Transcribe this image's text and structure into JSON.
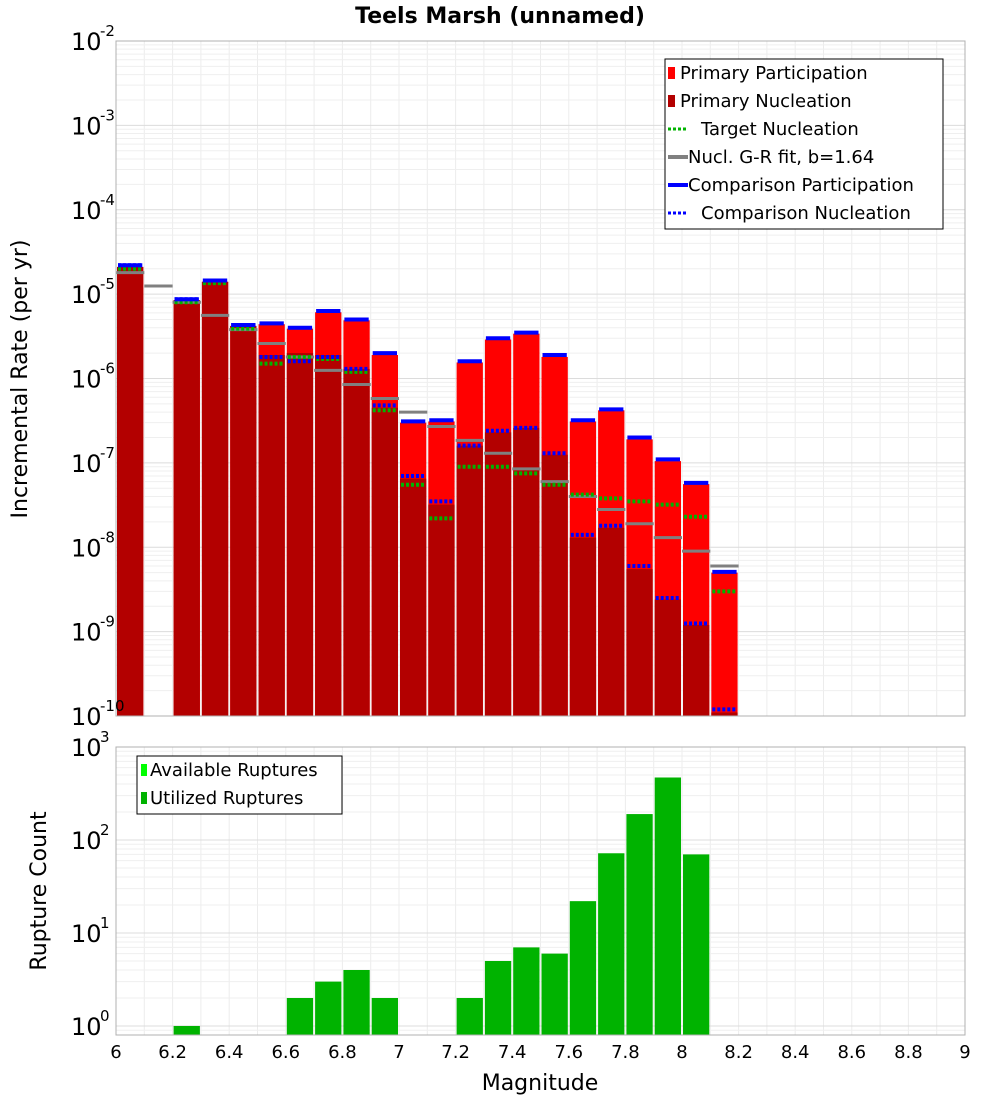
{
  "chart_data": [
    {
      "type": "bar",
      "title": "Teels Marsh (unnamed)",
      "ylabel": "Incremental Rate (per yr)",
      "xlim": [
        6,
        9
      ],
      "ylim": [
        1e-10,
        0.01
      ],
      "yscale": "log",
      "grid": true,
      "legend_position": "top-right",
      "bin_width": 0.1,
      "legend": [
        {
          "label": "Primary Participation",
          "color": "#ff0000",
          "style": "bar"
        },
        {
          "label": "Primary Nucleation",
          "color": "#b30000",
          "style": "bar"
        },
        {
          "label": "Target Nucleation",
          "color": "#00b300",
          "style": "dotted"
        },
        {
          "label": "Nucl. G-R fit, b=1.64",
          "color": "#808080",
          "style": "solid"
        },
        {
          "label": "Comparison Participation",
          "color": "#0000ff",
          "style": "solid"
        },
        {
          "label": "Comparison Nucleation",
          "color": "#0000ff",
          "style": "dotted"
        }
      ],
      "series": [
        {
          "name": "Primary Participation",
          "x": [
            6.05,
            6.25,
            6.35,
            6.45,
            6.55,
            6.65,
            6.75,
            6.85,
            6.95,
            7.05,
            7.15,
            7.25,
            7.35,
            7.45,
            7.55,
            7.65,
            7.75,
            7.85,
            7.95,
            8.05,
            8.15
          ],
          "values": [
            2.1e-05,
            8.5e-06,
            1.4e-05,
            4.2e-06,
            4.4e-06,
            3.9e-06,
            6.1e-06,
            4.9e-06,
            1.9e-06,
            3e-07,
            3.1e-07,
            1.55e-06,
            2.9e-06,
            3.4e-06,
            1.8e-06,
            3.1e-07,
            4.2e-07,
            1.9e-07,
            1.05e-07,
            5.6e-08,
            5e-09
          ]
        },
        {
          "name": "Primary Nucleation",
          "x": [
            6.05,
            6.25,
            6.35,
            6.45,
            6.55,
            6.65,
            6.75,
            6.85,
            6.95,
            7.05,
            7.15,
            7.25,
            7.35,
            7.45,
            7.55,
            7.65,
            7.75,
            7.85,
            7.95,
            8.05,
            8.15
          ],
          "values": [
            2.1e-05,
            8.5e-06,
            1.4e-05,
            4.2e-06,
            1.9e-06,
            2e-06,
            1.9e-06,
            1.3e-06,
            4.5e-07,
            6.5e-08,
            3.2e-08,
            1.6e-07,
            2.3e-07,
            2.6e-07,
            1.25e-07,
            1.3e-08,
            1.7e-08,
            5.5e-09,
            2.4e-09,
            1.2e-09,
            1.1e-10
          ]
        },
        {
          "name": "Target Nucleation",
          "x": [
            6.05,
            6.25,
            6.35,
            6.45,
            6.55,
            6.65,
            6.75,
            6.85,
            6.95,
            7.05,
            7.15,
            7.25,
            7.35,
            7.45,
            7.55,
            7.65,
            7.75,
            7.85,
            7.95,
            8.05,
            8.15
          ],
          "values": [
            2e-05,
            8e-06,
            1.35e-05,
            3.9e-06,
            1.5e-06,
            1.8e-06,
            1.7e-06,
            1.2e-06,
            4.2e-07,
            5.5e-08,
            2.2e-08,
            9e-08,
            9e-08,
            7.5e-08,
            5.5e-08,
            4.2e-08,
            3.8e-08,
            3.5e-08,
            3.2e-08,
            2.3e-08,
            3e-09
          ]
        },
        {
          "name": "Nucl. G-R fit, b=1.64",
          "x": [
            6.05,
            6.15,
            6.25,
            6.35,
            6.45,
            6.55,
            6.65,
            6.75,
            6.85,
            6.95,
            7.05,
            7.15,
            7.25,
            7.35,
            7.45,
            7.55,
            7.65,
            7.75,
            7.85,
            7.95,
            8.05,
            8.15
          ],
          "values": [
            1.8e-05,
            1.25e-05,
            8e-06,
            5.6e-06,
            3.8e-06,
            2.6e-06,
            1.8e-06,
            1.25e-06,
            8.5e-07,
            5.8e-07,
            4e-07,
            2.7e-07,
            1.85e-07,
            1.3e-07,
            8.5e-08,
            6e-08,
            4e-08,
            2.8e-08,
            1.9e-08,
            1.3e-08,
            9e-09,
            6e-09
          ]
        },
        {
          "name": "Comparison Participation",
          "x": [
            6.05,
            6.25,
            6.35,
            6.45,
            6.55,
            6.65,
            6.75,
            6.85,
            6.95,
            7.05,
            7.15,
            7.25,
            7.35,
            7.45,
            7.55,
            7.65,
            7.75,
            7.85,
            7.95,
            8.05,
            8.15
          ],
          "values": [
            2.2e-05,
            8.7e-06,
            1.45e-05,
            4.3e-06,
            4.5e-06,
            4e-06,
            6.3e-06,
            5e-06,
            2e-06,
            3.1e-07,
            3.2e-07,
            1.6e-06,
            3e-06,
            3.5e-06,
            1.9e-06,
            3.2e-07,
            4.3e-07,
            2e-07,
            1.1e-07,
            5.8e-08,
            5.1e-09
          ]
        },
        {
          "name": "Comparison Nucleation",
          "x": [
            6.05,
            6.25,
            6.35,
            6.45,
            6.55,
            6.65,
            6.75,
            6.85,
            6.95,
            7.05,
            7.15,
            7.25,
            7.35,
            7.45,
            7.55,
            7.65,
            7.75,
            7.85,
            7.95,
            8.05,
            8.15
          ],
          "values": [
            2.2e-05,
            8.7e-06,
            1.45e-05,
            4.3e-06,
            1.8e-06,
            1.6e-06,
            1.8e-06,
            1.3e-06,
            4.8e-07,
            7e-08,
            3.5e-08,
            1.6e-07,
            2.4e-07,
            2.6e-07,
            1.3e-07,
            1.4e-08,
            1.8e-08,
            6e-09,
            2.5e-09,
            1.25e-09,
            1.2e-10
          ]
        }
      ]
    },
    {
      "type": "bar",
      "xlabel": "Magnitude",
      "ylabel": "Rupture Count",
      "xlim": [
        6,
        9
      ],
      "ylim": [
        0.8,
        1000
      ],
      "yscale": "log",
      "grid": true,
      "legend_position": "top-left",
      "bin_width": 0.1,
      "xticks": [
        "6",
        "6.2",
        "6.4",
        "6.6",
        "6.8",
        "7",
        "7.2",
        "7.4",
        "7.6",
        "7.8",
        "8",
        "8.2",
        "8.4",
        "8.6",
        "8.8",
        "9"
      ],
      "legend": [
        {
          "label": "Available Ruptures",
          "color": "#00ff00"
        },
        {
          "label": "Utilized Ruptures",
          "color": "#00b300"
        }
      ],
      "series": [
        {
          "name": "Utilized Ruptures",
          "x": [
            6.25,
            6.65,
            6.75,
            6.85,
            6.95,
            7.25,
            7.35,
            7.45,
            7.55,
            7.65,
            7.75,
            7.85,
            7.95,
            8.05
          ],
          "values": [
            1,
            2,
            3,
            4,
            2,
            2,
            5,
            7,
            6,
            22,
            72,
            190,
            470,
            70
          ]
        }
      ]
    }
  ]
}
